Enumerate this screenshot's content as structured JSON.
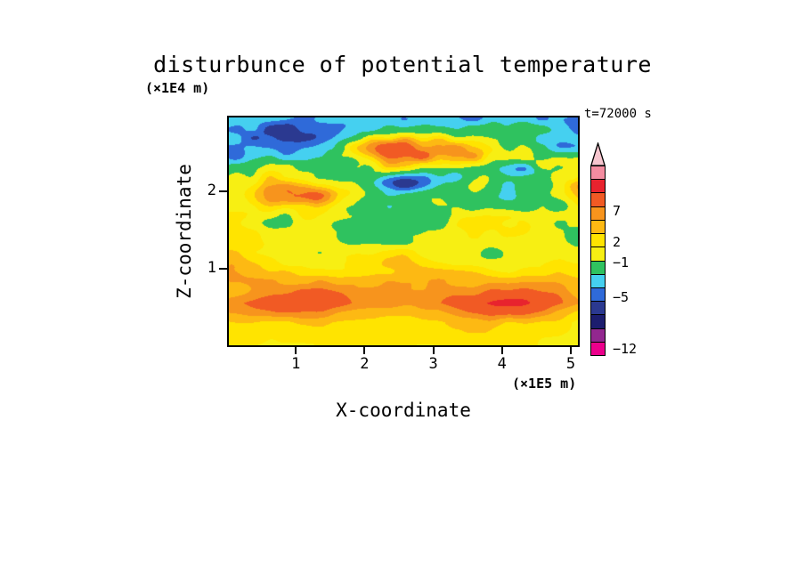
{
  "page": {
    "background": "#ffffff"
  },
  "chart_data": {
    "type": "heatmap",
    "title": "disturbunce of potential temperature",
    "xlabel": "X-coordinate",
    "ylabel": "Z-coordinate",
    "x_units": "(×1E5 m)",
    "y_units": "(×1E4 m)",
    "time_annotation": "t=72000 s",
    "x_ticks": [
      "1",
      "2",
      "3",
      "4",
      "5"
    ],
    "x_tick_values": [
      1,
      2,
      3,
      4,
      5
    ],
    "y_ticks": [
      "1",
      "2"
    ],
    "y_tick_values": [
      1,
      2
    ],
    "xlim": [
      0,
      5.13
    ],
    "ylim": [
      0,
      2.97
    ],
    "grid": false,
    "legend_position": "right-colorbar",
    "colorbar": {
      "tip_color": "#f6c5ce",
      "segments_top_to_bottom": [
        "#f48ca0",
        "#e8232e",
        "#f15a24",
        "#f7941d",
        "#fdb913",
        "#ffe400",
        "#f7ef13",
        "#2fc25f",
        "#45d0f0",
        "#2f6ad9",
        "#2b3990",
        "#1c1d6e",
        "#92278f",
        "#ec008c"
      ],
      "labels": [
        {
          "text": "7",
          "frac_from_bottom": 0.762
        },
        {
          "text": "2",
          "frac_from_bottom": 0.598
        },
        {
          "text": "−1",
          "frac_from_bottom": 0.49
        },
        {
          "text": "−5",
          "frac_from_bottom": 0.308
        },
        {
          "text": "−12",
          "frac_from_bottom": 0.037
        }
      ]
    },
    "value_thresholds": [
      -10,
      -8,
      -6.5,
      -5,
      -3.4,
      -1.8,
      0.2,
      1.4,
      2.4,
      3.4,
      4.4,
      6,
      8,
      10
    ],
    "value_colors": [
      "#ec008c",
      "#92278f",
      "#1c1d6e",
      "#2b3990",
      "#2f6ad9",
      "#45d0f0",
      "#2fc25f",
      "#f7ef13",
      "#ffe400",
      "#fdb913",
      "#f7941d",
      "#f15a24",
      "#e8232e",
      "#f48ca0",
      "#f6c5ce"
    ],
    "field_model": {
      "x_range": [
        0,
        5.13
      ],
      "z_range": [
        0,
        2.97
      ],
      "base_profile": [
        [
          0,
          1.3
        ],
        [
          0.3,
          1.8
        ],
        [
          0.55,
          3.9
        ],
        [
          0.85,
          3.2
        ],
        [
          1.1,
          1.5
        ],
        [
          1.35,
          0.2
        ],
        [
          1.7,
          -0.6
        ],
        [
          2.1,
          -0.4
        ],
        [
          2.5,
          -0.5
        ],
        [
          2.97,
          -0.6
        ]
      ],
      "amp_profile": [
        [
          0,
          0.8
        ],
        [
          0.5,
          1.1
        ],
        [
          0.9,
          1.1
        ],
        [
          1.4,
          1.8
        ],
        [
          1.9,
          3.0
        ],
        [
          2.4,
          4.0
        ],
        [
          2.97,
          3.6
        ]
      ],
      "octaves": [
        [
          0.7,
          2.1,
          1.0
        ],
        [
          1.7,
          4.2,
          0.55
        ],
        [
          4.0,
          8.0,
          0.28
        ]
      ],
      "bumps": [
        [
          3.85,
          2.5,
          0.75,
          0.22,
          3.2
        ],
        [
          2.0,
          2.62,
          0.4,
          0.15,
          1.4
        ],
        [
          0.9,
          2.78,
          0.45,
          0.12,
          -3.4
        ],
        [
          2.55,
          2.12,
          0.35,
          0.07,
          -3.2
        ],
        [
          3.3,
          2.2,
          0.45,
          0.08,
          -3.0
        ],
        [
          4.35,
          2.28,
          0.3,
          0.07,
          -2.6
        ],
        [
          1.35,
          1.95,
          0.55,
          0.08,
          2.6
        ],
        [
          1.3,
          0.55,
          0.7,
          0.16,
          1.2
        ],
        [
          3.2,
          0.5,
          0.8,
          0.15,
          0.9
        ],
        [
          4.5,
          0.52,
          0.6,
          0.14,
          1.1
        ]
      ]
    }
  }
}
